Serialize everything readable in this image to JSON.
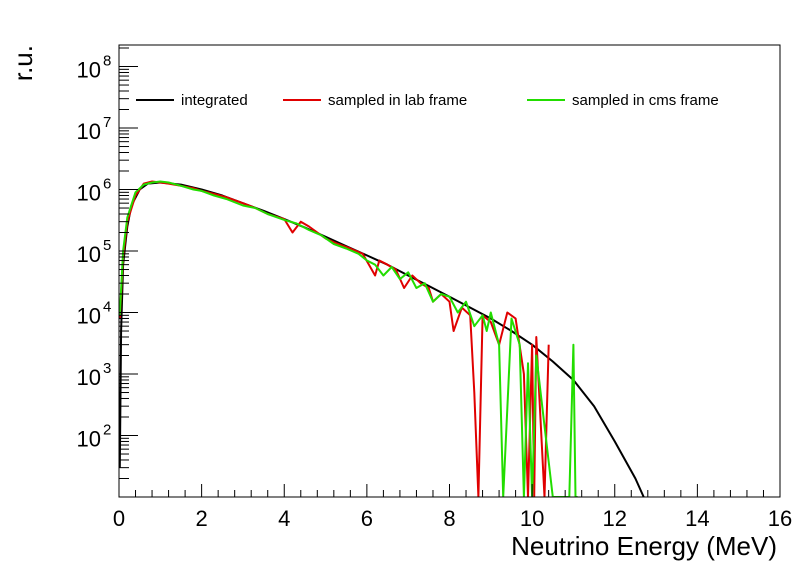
{
  "chart_data": {
    "type": "line",
    "xlabel": "Neutrino Energy (MeV)",
    "ylabel": "r.u.",
    "xlim": [
      0,
      16
    ],
    "ylim_log10": [
      1,
      8.35
    ],
    "yscale": "log",
    "x_ticks": [
      "0",
      "2",
      "4",
      "6",
      "8",
      "10",
      "12",
      "14",
      "16"
    ],
    "y_ticks": [
      {
        "base": "10",
        "exp": "2"
      },
      {
        "base": "10",
        "exp": "3"
      },
      {
        "base": "10",
        "exp": "4"
      },
      {
        "base": "10",
        "exp": "5"
      },
      {
        "base": "10",
        "exp": "6"
      },
      {
        "base": "10",
        "exp": "7"
      },
      {
        "base": "10",
        "exp": "8"
      }
    ],
    "legend_position": "top",
    "series": [
      {
        "name": "integrated",
        "color": "#000000",
        "x": [
          0.02,
          0.05,
          0.1,
          0.2,
          0.3,
          0.5,
          0.7,
          1.0,
          1.5,
          2.0,
          2.5,
          3.0,
          3.5,
          4.0,
          4.5,
          5.0,
          5.5,
          6.0,
          6.5,
          7.0,
          7.5,
          8.0,
          8.5,
          9.0,
          9.5,
          10.0,
          10.5,
          11.0,
          11.5,
          12.0,
          12.5,
          12.7
        ],
        "y": [
          30,
          5000,
          60000,
          250000,
          550000,
          1000000,
          1250000,
          1300000,
          1200000,
          1000000,
          800000,
          600000,
          450000,
          330000,
          240000,
          170000,
          120000,
          85000,
          60000,
          40000,
          27000,
          18000,
          12000,
          8000,
          5000,
          3000,
          1600,
          800,
          300,
          80,
          20,
          10
        ]
      },
      {
        "name": "sampled in lab frame",
        "color": "#e00000",
        "x": [
          0.02,
          0.1,
          0.2,
          0.4,
          0.6,
          0.8,
          1.0,
          1.2,
          1.5,
          1.8,
          2.0,
          2.3,
          2.6,
          3.0,
          3.3,
          3.6,
          4.0,
          4.2,
          4.4,
          4.6,
          4.8,
          5.0,
          5.3,
          5.6,
          5.9,
          6.2,
          6.3,
          6.5,
          6.7,
          6.9,
          7.1,
          7.3,
          7.5,
          7.6,
          7.8,
          8.0,
          8.1,
          8.3,
          8.5,
          8.6,
          8.7,
          8.8,
          9.0,
          9.2,
          9.4,
          9.6,
          9.8,
          9.9,
          10.0,
          10.05,
          10.1,
          10.3,
          10.4
        ],
        "y": [
          8000,
          80000,
          300000,
          800000,
          1250000,
          1350000,
          1300000,
          1250000,
          1150000,
          1050000,
          950000,
          850000,
          750000,
          600000,
          500000,
          400000,
          330000,
          200000,
          300000,
          250000,
          200000,
          160000,
          130000,
          110000,
          90000,
          40000,
          70000,
          60000,
          50000,
          25000,
          40000,
          30000,
          25000,
          15000,
          20000,
          15000,
          5000,
          12000,
          9000,
          500,
          10,
          9000,
          7000,
          3000,
          10000,
          8000,
          1000,
          10,
          3000,
          10,
          4000,
          10,
          3000
        ]
      },
      {
        "name": "sampled in cms frame",
        "color": "#22dd00",
        "x": [
          0.02,
          0.1,
          0.2,
          0.4,
          0.6,
          0.8,
          1.0,
          1.2,
          1.5,
          1.8,
          2.0,
          2.3,
          2.6,
          3.0,
          3.3,
          3.6,
          4.0,
          4.3,
          4.6,
          4.9,
          5.2,
          5.5,
          5.8,
          6.0,
          6.2,
          6.4,
          6.6,
          6.8,
          7.0,
          7.2,
          7.4,
          7.6,
          7.8,
          8.0,
          8.2,
          8.4,
          8.6,
          8.8,
          8.9,
          9.0,
          9.2,
          9.3,
          9.5,
          9.7,
          9.8,
          9.9,
          10.0,
          10.1,
          10.5,
          10.9,
          11.0,
          11.05,
          11.1
        ],
        "y": [
          9000,
          100000,
          350000,
          900000,
          1200000,
          1300000,
          1350000,
          1300000,
          1150000,
          1000000,
          950000,
          800000,
          700000,
          550000,
          500000,
          400000,
          320000,
          280000,
          220000,
          180000,
          130000,
          110000,
          90000,
          70000,
          60000,
          40000,
          55000,
          35000,
          45000,
          25000,
          30000,
          15000,
          20000,
          18000,
          10000,
          15000,
          6000,
          9000,
          5000,
          10000,
          3000,
          10,
          8000,
          3000,
          10,
          1500,
          10,
          2000,
          10,
          10,
          3000,
          10,
          10
        ]
      }
    ]
  }
}
